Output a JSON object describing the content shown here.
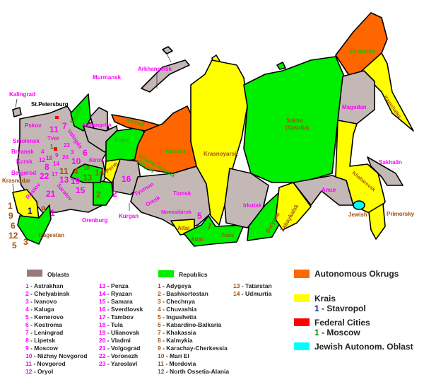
{
  "colors": {
    "oblast": "#c4b8b6",
    "oblast_swatch": "#9a7a78",
    "republic": "#00ee00",
    "autonomous_okrug": "#ff6600",
    "krai": "#ffff00",
    "federal_city": "#ff0000",
    "jewish": "#00ffff",
    "oblast_label": "#ff00ff",
    "republic_label": "#a0520d"
  },
  "map": {
    "kalingrad": "Kalingrad",
    "st_petersburg": "St.Petersburg",
    "pskov": "Pskov",
    "smolensk": "Smolensk",
    "bryansk": "Bryansk",
    "kursk": "Kursk",
    "belgorod": "Belgorod",
    "krasnodar": "Krasnodar",
    "tver": "Tver",
    "rostov": "Rostov",
    "saratov": "Saratov",
    "dagestan": "Dagestan",
    "orenburg": "Orenburg",
    "kurgan": "Kurgan",
    "kirov": "Kirov",
    "vologda": "Vologda",
    "karelia": "Karelia",
    "murmansk": "Murmansk",
    "arkhangelsk": "Arkhangelsk",
    "arkhangelsk_small": "Arkhangelsk",
    "komi": "Komi",
    "nenets": "Nenets",
    "perm": "Perm",
    "yamalia": "Yamalia",
    "khanty": "Khanty-mansia",
    "yugra": "(Yugra)",
    "tyumen": "Tyumen",
    "omsk": "Omsk",
    "tomsk": "Tomsk",
    "novosibirsk": "Novosibirsk",
    "altai_krai": "Altai",
    "altai_rep": "Altai",
    "tuva": "Tuva",
    "krasnoyarsk": "Krasnoyarsk",
    "irkutsk": "Irkutsk",
    "buryatia": "Buryatia",
    "zabaykalsk": "Zabaykalsk",
    "sakha": "Sakha",
    "yakutia": "(Yakutia)",
    "amur": "Amur",
    "magadan": "Magadan",
    "chukotka": "Chukotka",
    "kamchatka": "Kamchatka",
    "khabarovsk": "Khabarovsk",
    "sakhalin": "Sakhalin",
    "jewish": "Jewish",
    "primorsky": "Primorsky",
    "numbers": {
      "o1": "1",
      "o2": "2",
      "o3": "3",
      "o4": "4",
      "o6": "6",
      "o7": "7",
      "o8": "8",
      "o9": "9",
      "o10": "10",
      "o11": "11",
      "o12": "12",
      "o13": "13",
      "o14": "14",
      "o15": "15",
      "o16": "16",
      "o17": "17",
      "o18": "18",
      "o19": "19",
      "o20": "20",
      "o21": "21",
      "o22": "22",
      "o23": "23",
      "o5": "5",
      "r1": "1",
      "r2": "2",
      "r3": "3",
      "r4": "4",
      "r5": "5",
      "r6": "6",
      "r7": "7",
      "r8": "8",
      "r9": "9",
      "r10": "10",
      "r11": "11",
      "r12": "12",
      "r13": "13",
      "r14": "14",
      "k1": "1",
      "f1": "1"
    }
  },
  "legend": {
    "oblasts_title": "Oblasts",
    "oblasts": [
      {
        "n": "1",
        "name": "Astrakhan"
      },
      {
        "n": "2",
        "name": "Chelyabinsk"
      },
      {
        "n": "3",
        "name": "Ivanovo"
      },
      {
        "n": "4",
        "name": "Kaluga"
      },
      {
        "n": "5",
        "name": "Kemerovo"
      },
      {
        "n": "6",
        "name": "Kostroma"
      },
      {
        "n": "7",
        "name": "Leningrad"
      },
      {
        "n": "8",
        "name": "Lipetsk"
      },
      {
        "n": "9",
        "name": "Moscow"
      },
      {
        "n": "10",
        "name": "Nizhny Novgorod"
      },
      {
        "n": "11",
        "name": "Novgorod"
      },
      {
        "n": "12",
        "name": "Oryol"
      },
      {
        "n": "13",
        "name": "Penza"
      },
      {
        "n": "14",
        "name": "Ryazan"
      },
      {
        "n": "15",
        "name": "Samara"
      },
      {
        "n": "16",
        "name": "Sverdlovsk"
      },
      {
        "n": "17",
        "name": "Tambov"
      },
      {
        "n": "18",
        "name": "Tula"
      },
      {
        "n": "19",
        "name": "Ulianovsk"
      },
      {
        "n": "20",
        "name": "Vladmi"
      },
      {
        "n": "21",
        "name": "Volgograd"
      },
      {
        "n": "22",
        "name": "Voronezh"
      },
      {
        "n": "23",
        "name": "Yaroslavl"
      }
    ],
    "republics_title": "Republics",
    "republics": [
      {
        "n": "1",
        "name": "Adygeya"
      },
      {
        "n": "2",
        "name": "Bashkortostan"
      },
      {
        "n": "3",
        "name": "Chechnya"
      },
      {
        "n": "4",
        "name": "Chuvashia"
      },
      {
        "n": "5",
        "name": "Ingushetia"
      },
      {
        "n": "6",
        "name": "Kabardino-Balkaria"
      },
      {
        "n": "7",
        "name": "Khakassia"
      },
      {
        "n": "8",
        "name": "Kalmykia"
      },
      {
        "n": "9",
        "name": "Karachay-Cherkessia"
      },
      {
        "n": "10",
        "name": "Mari El"
      },
      {
        "n": "11",
        "name": "Mordovia"
      },
      {
        "n": "12",
        "name": "North Ossetia-Alania"
      },
      {
        "n": "13",
        "name": "Tatarstan"
      },
      {
        "n": "14",
        "name": "Udmurtia"
      }
    ],
    "autonomous_okrugs": "Autonomous Okrugs",
    "krais": "Krais",
    "krais_item": {
      "n": "1",
      "name": "Stavropol"
    },
    "federal_cities": "Federal Cities",
    "federal_item": {
      "n": "1",
      "name": "Moscow"
    },
    "jewish": "Jewish Autonom. Oblast"
  }
}
